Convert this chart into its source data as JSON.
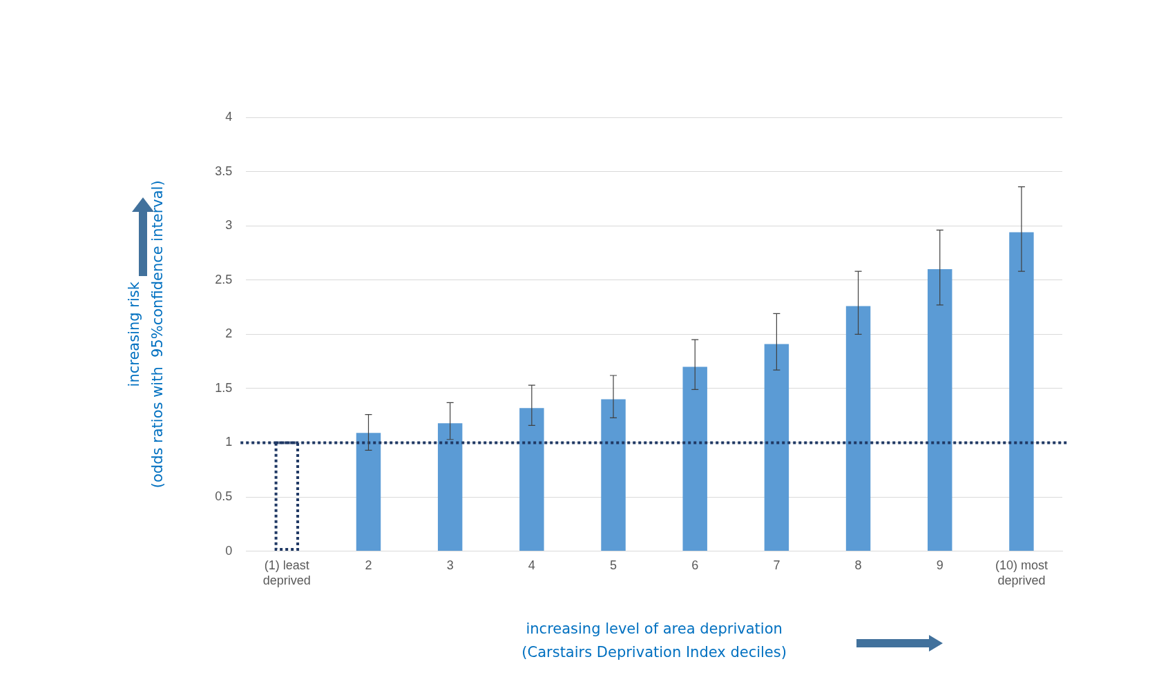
{
  "chart_data": {
    "type": "bar",
    "xlabel": "increasing level of area deprivation\n(Carstairs Deprivation Index deciles)",
    "ylabel": "increasing risk\n(odds ratios with  95%confidence interval)",
    "categories": [
      "(1) least\ndeprived",
      "2",
      "3",
      "4",
      "5",
      "6",
      "7",
      "8",
      "9",
      "(10) most\ndeprived"
    ],
    "series": [
      {
        "color": "#1f3864",
        "line_style": "dotted",
        "values": [
          1,
          null,
          null,
          null,
          null,
          null,
          null,
          null,
          null,
          null
        ]
      },
      {
        "color": "#5b9bd5",
        "values": [
          null,
          1.09,
          1.18,
          1.32,
          1.4,
          1.7,
          1.91,
          2.26,
          2.6,
          2.94
        ],
        "errors": [
          null,
          [
            0.93,
            1.26
          ],
          [
            1.03,
            1.37
          ],
          [
            1.16,
            1.53
          ],
          [
            1.23,
            1.62
          ],
          [
            1.49,
            1.95
          ],
          [
            1.67,
            2.19
          ],
          [
            2.0,
            2.58
          ],
          [
            2.27,
            2.96
          ],
          [
            2.58,
            3.36
          ]
        ]
      }
    ],
    "ylim": [
      0,
      4
    ],
    "yticks": [
      0,
      0.5,
      1,
      1.5,
      2,
      2.5,
      3,
      3.5,
      4
    ],
    "ref_lines": [
      {
        "axis": "y",
        "value": 1,
        "color": "#1f3864",
        "line_style": "dotted"
      }
    ],
    "grid": "y",
    "legend": false
  }
}
